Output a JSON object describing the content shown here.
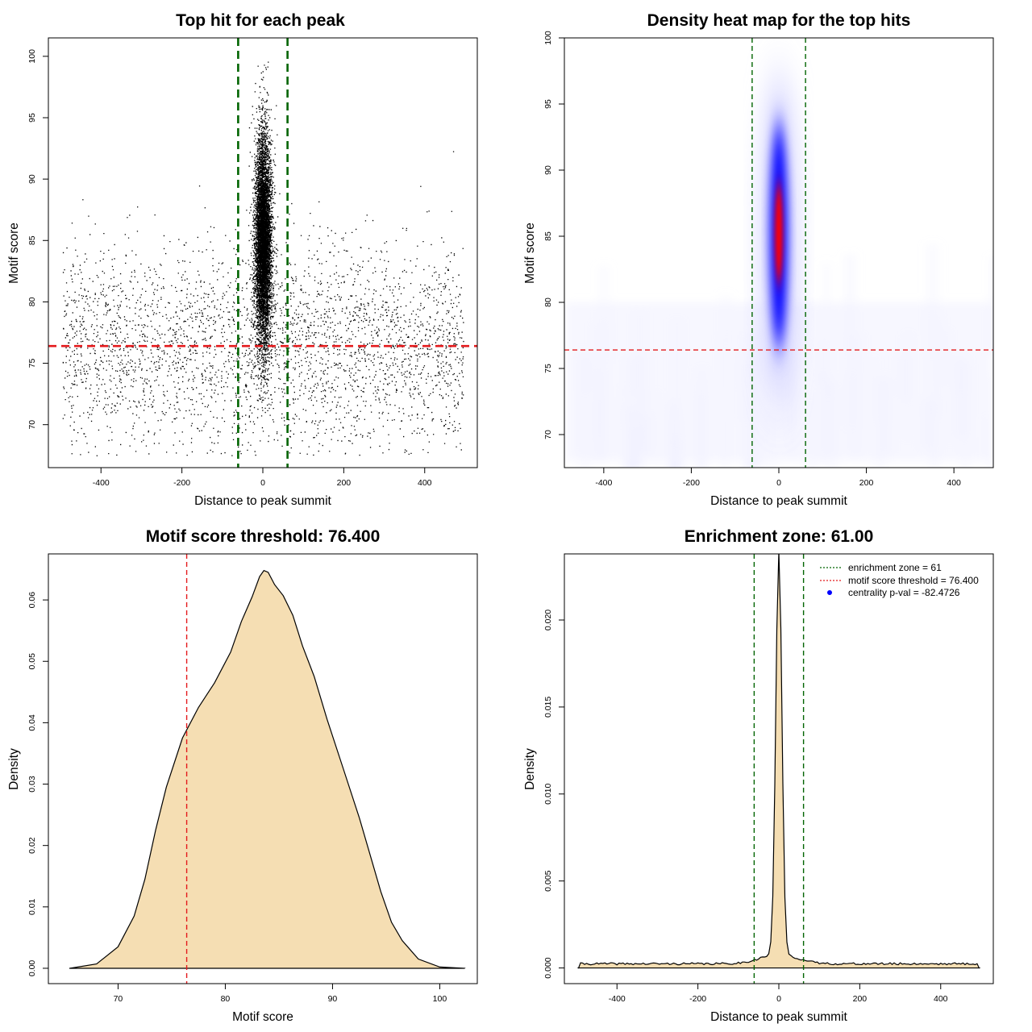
{
  "colors": {
    "axis": "#000000",
    "green_line": "#006400",
    "red_line": "#e41a1c",
    "fill": "#f5deb3",
    "point": "#000000",
    "heat_low": "#f4f4ff",
    "heat_mid": "#0000ff",
    "heat_high": "#ff0000",
    "legend_marker": "#0000ff"
  },
  "chart_data": [
    {
      "id": "scatter",
      "type": "scatter",
      "title": "Top hit for each peak",
      "xlabel": "Distance to peak summit",
      "ylabel": "Motif score",
      "xlim": [
        -530,
        530
      ],
      "ylim": [
        66.5,
        101.5
      ],
      "xticks": [
        -400,
        -200,
        0,
        200,
        400
      ],
      "yticks": [
        70,
        75,
        80,
        85,
        90,
        95,
        100
      ],
      "background": {
        "x_range": [
          -495,
          495
        ],
        "score_mean": 76.5,
        "score_sd": 4.2,
        "count": 3200,
        "seed": 7
      },
      "center_cluster": {
        "x_mean": 0,
        "x_sd": 12,
        "score_mean": 85,
        "score_sd": 4.3,
        "count": 7000,
        "seed": 11
      },
      "vlines": [
        -61,
        61
      ],
      "hline": 76.4
    },
    {
      "id": "heatmap",
      "type": "heatmap",
      "title": "Density heat map for the top hits",
      "xlabel": "Distance to peak summit",
      "ylabel": "Motif score",
      "xlim": [
        -490,
        490
      ],
      "ylim": [
        67.5,
        100
      ],
      "xticks": [
        -400,
        -200,
        0,
        200,
        400
      ],
      "yticks": [
        70,
        75,
        80,
        85,
        90,
        95,
        100
      ],
      "hotspot": {
        "x": 0,
        "y": 85.2
      },
      "vlines": [
        -61,
        61
      ],
      "hline": 76.4
    },
    {
      "id": "score-density",
      "type": "area",
      "title": "Motif score threshold: 76.400",
      "xlabel": "Motif score",
      "ylabel": "Density",
      "xlim": [
        63.5,
        103.5
      ],
      "ylim": [
        -0.0025,
        0.0675
      ],
      "xticks": [
        70,
        80,
        90,
        100
      ],
      "yticks": [
        0.0,
        0.01,
        0.02,
        0.03,
        0.04,
        0.05,
        0.06
      ],
      "ytick_labels": [
        "0.00",
        "0.01",
        "0.02",
        "0.03",
        "0.04",
        "0.05",
        "0.06"
      ],
      "x": [
        65.5,
        68,
        70,
        71.5,
        72.5,
        73.5,
        74.5,
        76,
        77.5,
        79,
        80.5,
        81.5,
        82.5,
        83.2,
        83.6,
        84,
        84.6,
        85.4,
        86.3,
        87.2,
        88.3,
        89.5,
        91,
        92.5,
        93.5,
        94.5,
        95.5,
        96.5,
        98,
        100,
        102.3
      ],
      "values": [
        0.0,
        0.0007,
        0.0035,
        0.0085,
        0.0145,
        0.0225,
        0.0295,
        0.0375,
        0.0425,
        0.0465,
        0.0515,
        0.0565,
        0.0605,
        0.0638,
        0.0648,
        0.0645,
        0.0625,
        0.0607,
        0.0575,
        0.0525,
        0.0475,
        0.0405,
        0.0325,
        0.0245,
        0.0185,
        0.0125,
        0.0075,
        0.0045,
        0.0015,
        0.0002,
        0.0
      ],
      "vline": 76.4
    },
    {
      "id": "distance-density",
      "type": "area",
      "title": "Enrichment zone: 61.00",
      "xlabel": "Distance to peak summit",
      "ylabel": "Density",
      "xlim": [
        -530,
        530
      ],
      "ylim": [
        -0.0009,
        0.0238
      ],
      "xticks": [
        -400,
        -200,
        0,
        200,
        400
      ],
      "yticks": [
        0.0,
        0.005,
        0.01,
        0.015,
        0.02
      ],
      "ytick_labels": [
        "0.000",
        "0.005",
        "0.010",
        "0.015",
        "0.020"
      ],
      "background_level": 0.00024,
      "peak_height": 0.0232,
      "peak_sd": 7.6,
      "x_range": [
        -495,
        495
      ],
      "vlines": [
        -61,
        61
      ],
      "legend": [
        {
          "marker": "dotted-green",
          "label": "enrichment zone = 61"
        },
        {
          "marker": "dotted-red",
          "label": "motif score threshold = 76.400"
        },
        {
          "marker": "dot-blue",
          "label": "centrality p-val = -82.4726"
        }
      ]
    }
  ]
}
